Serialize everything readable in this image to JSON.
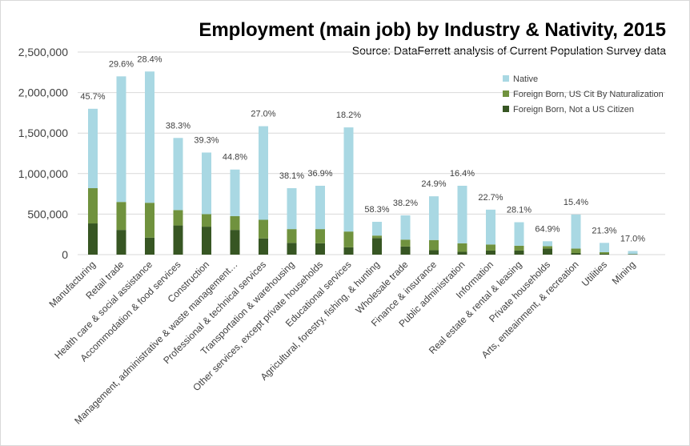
{
  "chart_data": {
    "type": "bar",
    "stacked": true,
    "title": "Employment (main job) by Industry & Nativity, 2015",
    "subtitle": "Source:  DataFerrett analysis of Current Population Survey data",
    "xlabel": "",
    "ylabel": "",
    "ylim": [
      0,
      2500000
    ],
    "yticks": [
      0,
      500000,
      1000000,
      1500000,
      2000000,
      2500000
    ],
    "ytick_labels": [
      "0",
      "500,000",
      "1,000,000",
      "1,500,000",
      "2,000,000",
      "2,500,000"
    ],
    "grid": "horizontal",
    "legend_position": "top-right",
    "categories": [
      "Manufacturing",
      "Retail trade",
      "Health care & social assistance",
      "Accommodation & food services",
      "Construction",
      "Management, administrative & waste management…",
      "Professional & technical services",
      "Transportation & warehousing",
      "Other services, except private households",
      "Educational services",
      "Agricultural, forestry, fishing, & hunting",
      "Wholesale trade",
      "Finance & insurance",
      "Public administration",
      "Information",
      "Real estate & rental & leasing",
      "Private households",
      "Arts, enteainment, & recreation",
      "Utilities",
      "Mining"
    ],
    "series": [
      {
        "name": "Foreign Born, Not a US Citizen",
        "color": "#375623",
        "values": [
          385000,
          305000,
          210000,
          360000,
          345000,
          305000,
          200000,
          145000,
          140000,
          90000,
          205000,
          100000,
          55000,
          35000,
          50000,
          50000,
          75000,
          20000,
          10000,
          5000
        ]
      },
      {
        "name": "Foreign Born, US Cit By Naturalization",
        "color": "#70923e",
        "values": [
          435000,
          345000,
          430000,
          190000,
          155000,
          170000,
          230000,
          170000,
          175000,
          195000,
          30000,
          85000,
          125000,
          105000,
          75000,
          60000,
          30000,
          55000,
          20000,
          2000
        ]
      },
      {
        "name": "Native",
        "color": "#a9d8e3",
        "values": [
          980000,
          1550000,
          1620000,
          890000,
          760000,
          575000,
          1155000,
          505000,
          535000,
          1285000,
          170000,
          300000,
          540000,
          710000,
          430000,
          290000,
          60000,
          420000,
          115000,
          38000
        ]
      }
    ],
    "data_labels": [
      "45.7%",
      "29.6%",
      "28.4%",
      "38.3%",
      "39.3%",
      "44.8%",
      "27.0%",
      "38.1%",
      "36.9%",
      "18.2%",
      "58.3%",
      "38.2%",
      "24.9%",
      "16.4%",
      "22.7%",
      "28.1%",
      "64.9%",
      "15.4%",
      "21.3%",
      "17.0%"
    ]
  }
}
